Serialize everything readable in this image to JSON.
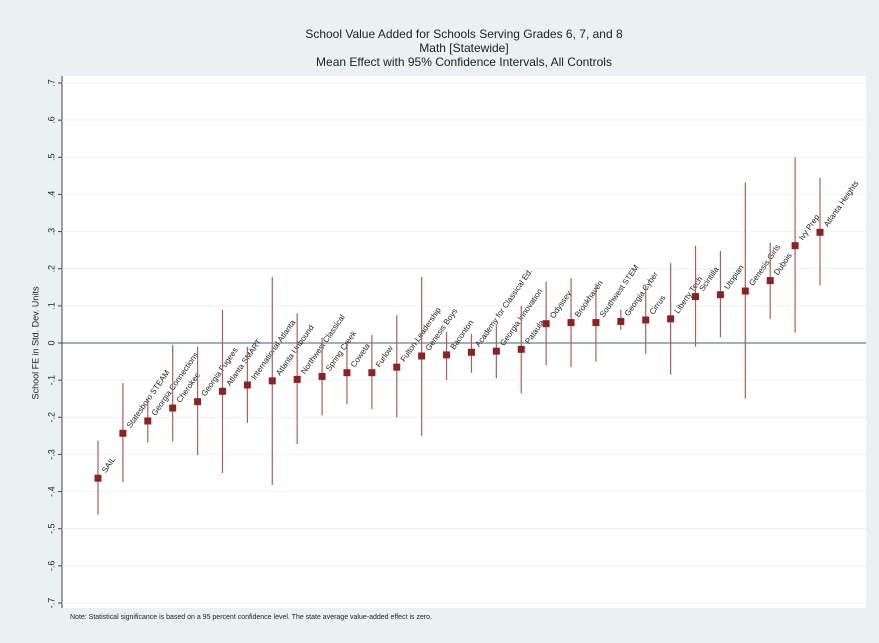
{
  "chart_data": {
    "type": "errorbar",
    "title": "School Value Added for Schools Serving Grades 6, 7, and 8",
    "subtitle": "Math [Statewide]",
    "subtitle2": "Mean Effect with 95% Confidence Intervals, All Controls",
    "y_label": "School FE in Std. Dev. Units",
    "note": "Note: Statistical significance is based on a 95 percent confidence level. The state average value-added effect is zero.",
    "categories": [
      "SAIL",
      "Statesboro STEAM",
      "Georgia Connections",
      "Cherokee",
      "Georgia Fugees",
      "Atlanta SMART",
      "International Atlanta",
      "Atlanta Unbound",
      "Northwest Classical",
      "Spring Creek",
      "Coweta",
      "Furlow",
      "Fulton Leadership",
      "Genesis Boys",
      "Baconton",
      "Academy for Classical Ed.",
      "Georgia Innovation",
      "Pataula",
      "Odyssey",
      "Brookhaven",
      "Southwest STEM",
      "Georgia Cyber",
      "Cirrus",
      "Liberty Tech",
      "Scintilla",
      "Utopian",
      "Genesis Girls",
      "Dubois",
      "Ivy Prep",
      "Atlanta Heights"
    ],
    "values": [
      -0.364,
      -0.243,
      -0.21,
      -0.175,
      -0.158,
      -0.13,
      -0.113,
      -0.102,
      -0.098,
      -0.09,
      -0.08,
      -0.08,
      -0.065,
      -0.035,
      -0.032,
      -0.025,
      -0.022,
      -0.017,
      0.052,
      0.055,
      0.055,
      0.058,
      0.062,
      0.065,
      0.125,
      0.13,
      0.14,
      0.168,
      0.262,
      0.298
    ],
    "lower": [
      -0.462,
      -0.375,
      -0.268,
      -0.265,
      -0.302,
      -0.35,
      -0.215,
      -0.382,
      -0.272,
      -0.195,
      -0.165,
      -0.178,
      -0.2,
      -0.25,
      -0.1,
      -0.08,
      -0.095,
      -0.135,
      -0.06,
      -0.065,
      -0.05,
      0.035,
      -0.03,
      -0.085,
      -0.01,
      0.015,
      -0.15,
      0.065,
      0.028,
      0.155
    ],
    "upper": [
      -0.263,
      -0.108,
      -0.15,
      -0.005,
      -0.01,
      0.09,
      -0.01,
      0.178,
      0.08,
      0.015,
      0.005,
      0.022,
      0.075,
      0.178,
      0.03,
      0.025,
      0.05,
      0.1,
      0.165,
      0.175,
      0.16,
      0.09,
      0.155,
      0.215,
      0.262,
      0.248,
      0.432,
      0.27,
      0.5,
      0.445
    ],
    "color": "#8b2323",
    "ci_color": "#a86060",
    "zero_line_color": "#2e6b6b",
    "ylim": [
      -0.7,
      0.7
    ],
    "yticks": [
      {
        "value": 0.7,
        "label": ".7"
      },
      {
        "value": 0.6,
        "label": ".6"
      },
      {
        "value": 0.5,
        "label": ".5"
      },
      {
        "value": 0.4,
        "label": ".4"
      },
      {
        "value": 0.3,
        "label": ".3"
      },
      {
        "value": 0.2,
        "label": ".2"
      },
      {
        "value": 0.1,
        "label": ".1"
      },
      0,
      {
        "value": -0.1,
        "label": "-.1"
      },
      {
        "value": -0.2,
        "label": "-.2"
      },
      {
        "value": -0.3,
        "label": "-.3"
      },
      {
        "value": -0.4,
        "label": "-.4"
      },
      {
        "value": -0.5,
        "label": "-.5"
      },
      {
        "value": -0.6,
        "label": "-.6"
      },
      {
        "value": -0.7,
        "label": "-.7"
      }
    ],
    "grid": true
  }
}
